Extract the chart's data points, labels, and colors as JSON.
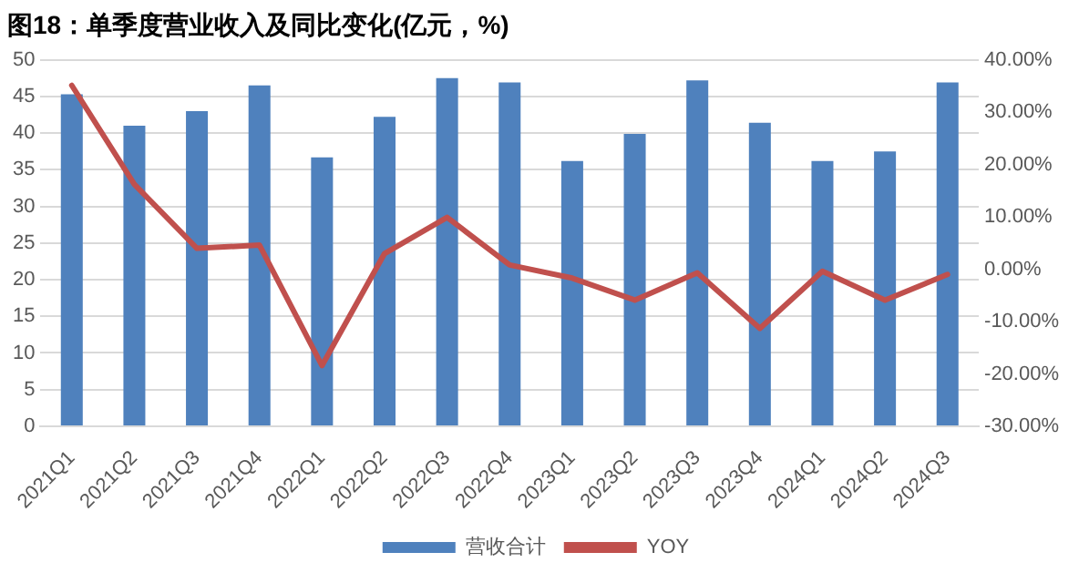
{
  "chart_data": {
    "type": "bar",
    "title": "图18：单季度营业收入及同比变化(亿元，%)",
    "categories": [
      "2021Q1",
      "2021Q2",
      "2021Q3",
      "2021Q4",
      "2022Q1",
      "2022Q2",
      "2022Q3",
      "2022Q4",
      "2023Q1",
      "2023Q2",
      "2023Q3",
      "2023Q4",
      "2024Q1",
      "2024Q2",
      "2024Q3"
    ],
    "series": [
      {
        "name": "营收合计",
        "color": "#4f81bd",
        "values": [
          45.3,
          41,
          43,
          46.5,
          36.7,
          42.2,
          47.5,
          46.9,
          36.2,
          39.9,
          47.2,
          41.4,
          36.2,
          37.5,
          46.9
        ]
      },
      {
        "name": "YOY",
        "type": "line",
        "axis": "y2",
        "color": "#c0504d",
        "values": [
          35.1,
          16.2,
          4.0,
          4.6,
          -18.4,
          3.0,
          9.9,
          0.8,
          -1.7,
          -5.9,
          -0.7,
          -11.3,
          -0.4,
          -5.9,
          -1.0
        ]
      }
    ],
    "ylim": [
      0,
      50
    ],
    "yticks": [
      0,
      5,
      10,
      15,
      20,
      25,
      30,
      35,
      40,
      45,
      50
    ],
    "y2lim": [
      -30,
      40
    ],
    "y2ticks": [
      {
        "value": -30,
        "label": "-30.00%"
      },
      {
        "value": -20,
        "label": "-20.00%"
      },
      {
        "value": -10,
        "label": "-10.00%"
      },
      {
        "value": 0,
        "label": "0.00%"
      },
      {
        "value": 10,
        "label": "10.00%"
      },
      {
        "value": 20,
        "label": "20.00%"
      },
      {
        "value": 30,
        "label": "30.00%"
      },
      {
        "value": 40,
        "label": "40.00%"
      }
    ],
    "grid": "y",
    "legend": "bottom",
    "marker": "none",
    "line_style": "solid"
  }
}
